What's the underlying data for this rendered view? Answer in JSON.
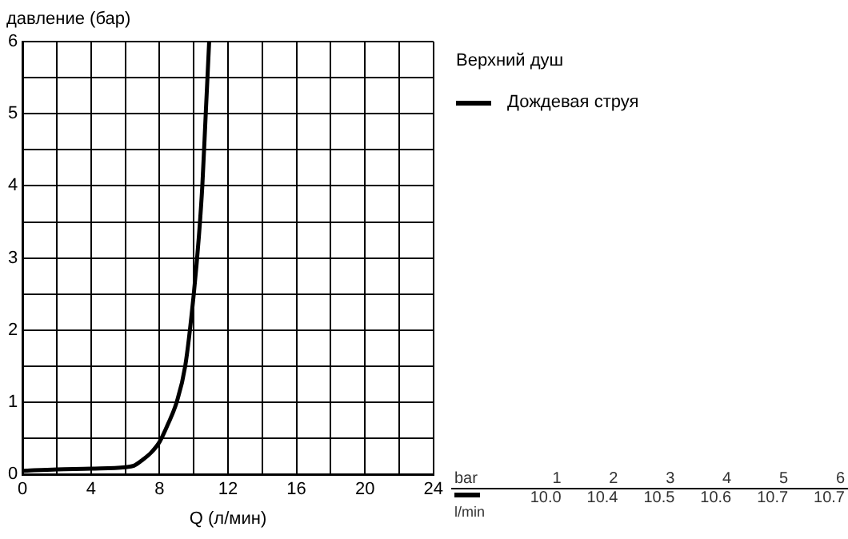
{
  "chart_data": {
    "type": "line",
    "ylabel": "давление (бар)",
    "xlabel": "Q (л/мин)",
    "legend_title": "Верхний душ",
    "legend": "top right",
    "grid": true,
    "marker": "none",
    "line_style": "solid",
    "xlim": [
      0,
      24
    ],
    "ylim": [
      0,
      6
    ],
    "xticks": [
      0,
      {
        "value": 2,
        "label": null
      },
      4,
      {
        "value": 6,
        "label": null
      },
      8,
      {
        "value": 10,
        "label": null
      },
      12,
      {
        "value": 14,
        "label": null
      },
      16,
      {
        "value": 18,
        "label": null
      },
      20,
      {
        "value": 22,
        "label": null
      },
      24
    ],
    "yticks": [
      0,
      {
        "value": 0.5,
        "label": null
      },
      1,
      {
        "value": 1.5,
        "label": null
      },
      2,
      {
        "value": 2.5,
        "label": null
      },
      3,
      {
        "value": 3.5,
        "label": null
      },
      4,
      {
        "value": 4.5,
        "label": null
      },
      5,
      {
        "value": 5.5,
        "label": null
      },
      6
    ],
    "series": [
      {
        "name": "Дождевая струя",
        "color": "#000000",
        "x": [
          0,
          2,
          4,
          6,
          6.5,
          7,
          7.5,
          8,
          8.5,
          9,
          9.5,
          10,
          10.3,
          10.5,
          10.7,
          10.9
        ],
        "values": [
          0.05,
          0.07,
          0.08,
          0.1,
          0.12,
          0.2,
          0.3,
          0.45,
          0.7,
          1.0,
          1.5,
          2.5,
          3.3,
          4,
          5,
          6
        ]
      }
    ],
    "annotations": [
      "bar",
      "1",
      "2",
      "3",
      "4",
      "5",
      "6",
      "l/min",
      "10.0",
      "10.4",
      "10.5",
      "10.6",
      "10.7",
      "10.7"
    ]
  }
}
